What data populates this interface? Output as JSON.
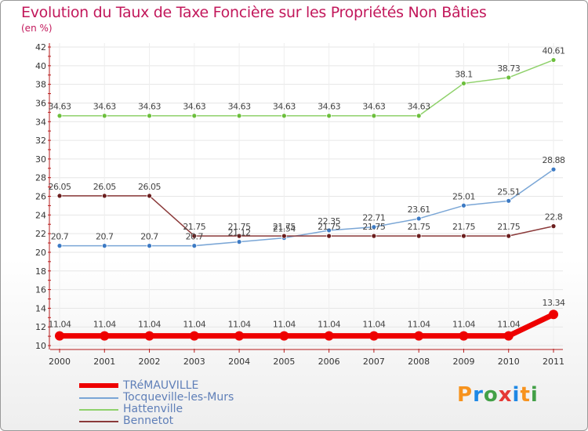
{
  "title": "Evolution du Taux de Taxe Foncière sur les Propriétés Non Bâties",
  "unit_label": "(en %)",
  "logo": {
    "letters": [
      "P",
      "r",
      "o",
      "x",
      "i",
      "t",
      "i"
    ],
    "colors": [
      "#f7931e",
      "#1e88e5",
      "#43a047",
      "#e53935",
      "#1e88e5",
      "#f7931e",
      "#43a047"
    ]
  },
  "chart_data": {
    "type": "line",
    "title": "Evolution du Taux de Taxe Foncière sur les Propriétés Non Bâties",
    "ylabel": "(en %)",
    "xlabel": "",
    "ylim": [
      10,
      42
    ],
    "y_ticks": [
      10,
      12,
      14,
      16,
      18,
      20,
      22,
      24,
      26,
      28,
      30,
      32,
      34,
      36,
      38,
      40,
      42
    ],
    "categories": [
      "2000",
      "2001",
      "2002",
      "2003",
      "2004",
      "2005",
      "2006",
      "2007",
      "2008",
      "2009",
      "2010",
      "2011"
    ],
    "grid": true,
    "series": [
      {
        "name": "Hattenville",
        "color": "#8fd16b",
        "marker": "#6cbf3c",
        "width": 1.5,
        "r": 3,
        "values": [
          34.63,
          34.63,
          34.63,
          34.63,
          34.63,
          34.63,
          34.63,
          34.63,
          34.63,
          38.1,
          38.73,
          40.61
        ],
        "labels": [
          "34.63",
          "34.63",
          "34.63",
          "34.63",
          "34.63",
          "34.63",
          "34.63",
          "34.63",
          "34.63",
          "38.1",
          "38.73",
          "40.61"
        ]
      },
      {
        "name": "Tocqueville-les-Murs",
        "color": "#7aa6d6",
        "marker": "#3c7ac4",
        "width": 1.5,
        "r": 3,
        "values": [
          20.7,
          20.7,
          20.7,
          20.7,
          21.12,
          21.54,
          22.35,
          22.71,
          23.61,
          25.01,
          25.51,
          28.88
        ],
        "labels": [
          "20.7",
          "20.7",
          "20.7",
          "20.7",
          "21.12",
          "21.54",
          "22.35",
          "22.71",
          "23.61",
          "25.01",
          "25.51",
          "28.88"
        ]
      },
      {
        "name": "Bennetot",
        "color": "#8b3a3a",
        "marker": "#6b1e1e",
        "width": 1.5,
        "r": 3,
        "values": [
          26.05,
          26.05,
          26.05,
          21.75,
          21.75,
          21.75,
          21.75,
          21.75,
          21.75,
          21.75,
          21.75,
          22.8
        ],
        "labels": [
          "26.05",
          "26.05",
          "26.05",
          "21.75",
          "21.75",
          "21.75",
          "21.75",
          "21.75",
          "21.75",
          "21.75",
          "21.75",
          "22.8"
        ]
      },
      {
        "name": "TRéMAUVILLE",
        "color": "#ee0000",
        "marker": "#ee0000",
        "width": 7,
        "r": 6,
        "values": [
          11.04,
          11.04,
          11.04,
          11.04,
          11.04,
          11.04,
          11.04,
          11.04,
          11.04,
          11.04,
          11.04,
          13.34
        ],
        "labels": [
          "11.04",
          "11.04",
          "11.04",
          "11.04",
          "11.04",
          "11.04",
          "11.04",
          "11.04",
          "11.04",
          "11.04",
          "11.04",
          "13.34"
        ]
      }
    ]
  },
  "legend": [
    {
      "name": "TRéMAUVILLE",
      "color": "#ee0000",
      "thick": 6
    },
    {
      "name": "Tocqueville-les-Murs",
      "color": "#7aa6d6",
      "thick": 2
    },
    {
      "name": "Hattenville",
      "color": "#8fd16b",
      "thick": 2
    },
    {
      "name": "Bennetot",
      "color": "#8b3a3a",
      "thick": 2
    }
  ]
}
